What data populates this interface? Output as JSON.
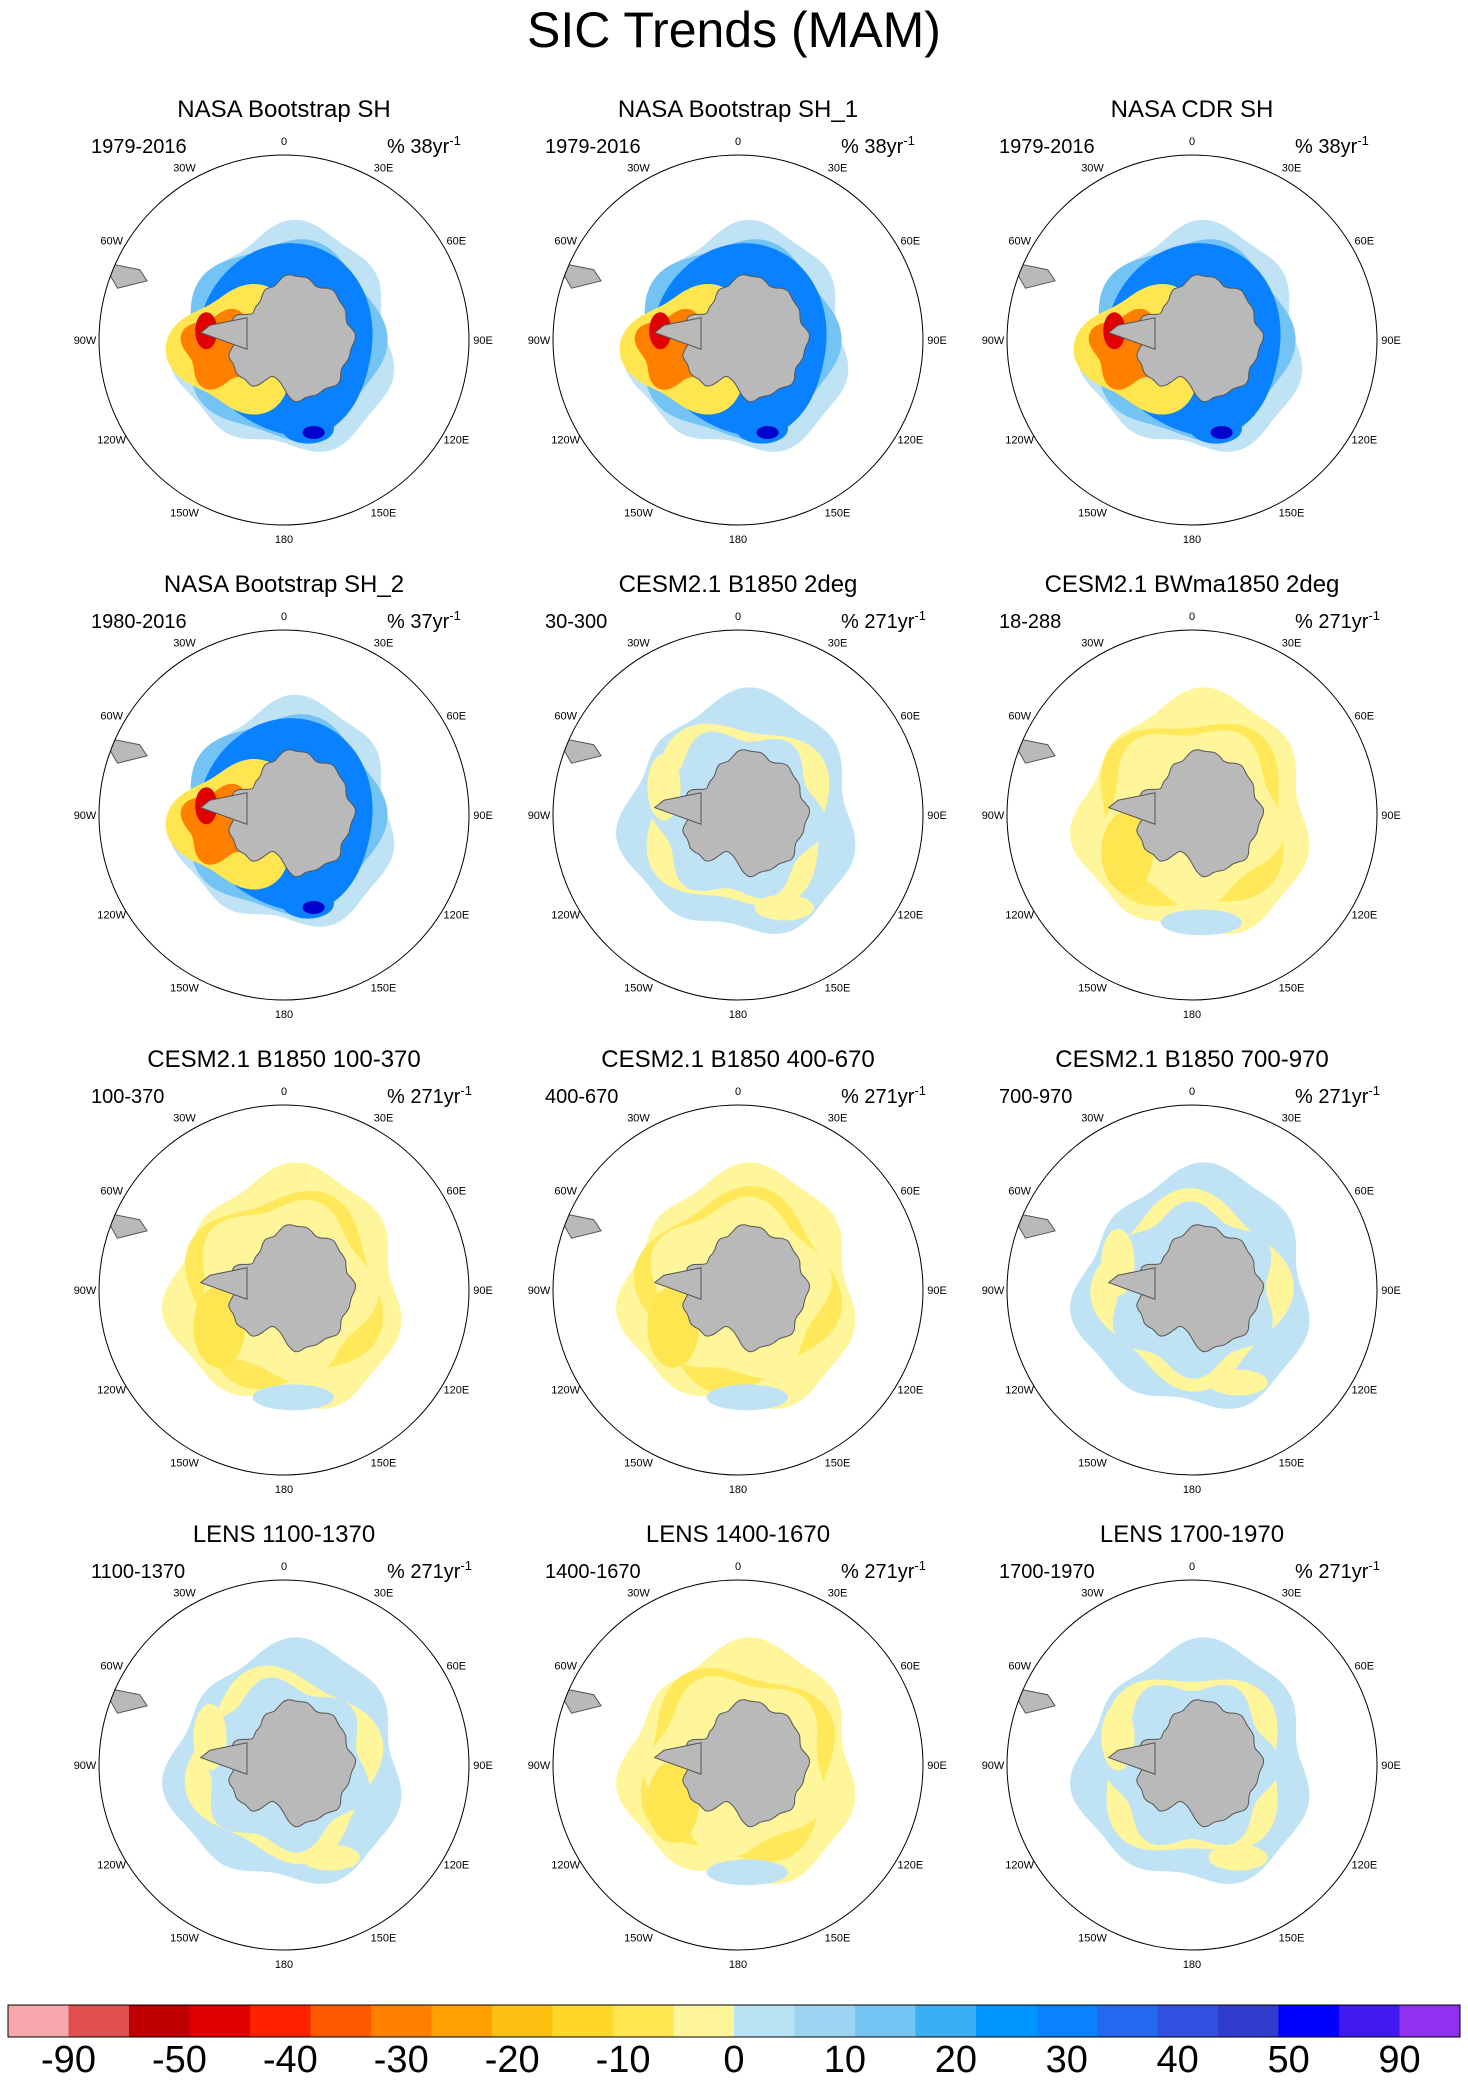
{
  "figure": {
    "title": "SIC Trends (MAM)"
  },
  "chart_data": {
    "type": "polar-stereographic contour maps",
    "projection": "South Polar Stereographic",
    "lon_tick_labels": [
      "0",
      "30E",
      "60E",
      "90E",
      "120E",
      "150E",
      "180",
      "150W",
      "120W",
      "90W",
      "60W",
      "30W"
    ],
    "panels": [
      {
        "title": "NASA Bootstrap SH",
        "period": "1979-2016",
        "units": "% 38yr",
        "units_sup": "-1",
        "style": "obs"
      },
      {
        "title": "NASA Bootstrap SH_1",
        "period": "1979-2016",
        "units": "% 38yr",
        "units_sup": "-1",
        "style": "obs"
      },
      {
        "title": "NASA CDR SH",
        "period": "1979-2016",
        "units": "% 38yr",
        "units_sup": "-1",
        "style": "obs"
      },
      {
        "title": "NASA Bootstrap SH_2",
        "period": "1980-2016",
        "units": "% 37yr",
        "units_sup": "-1",
        "style": "obs"
      },
      {
        "title": "CESM2.1 B1850 2deg",
        "period": "30-300",
        "units": "% 271yr",
        "units_sup": "-1",
        "style": "model-blue"
      },
      {
        "title": "CESM2.1 BWma1850 2deg",
        "period": "18-288",
        "units": "% 271yr",
        "units_sup": "-1",
        "style": "model-yellow"
      },
      {
        "title": "CESM2.1 B1850 100-370",
        "period": "100-370",
        "units": "% 271yr",
        "units_sup": "-1",
        "style": "model-yellow"
      },
      {
        "title": "CESM2.1 B1850 400-670",
        "period": "400-670",
        "units": "% 271yr",
        "units_sup": "-1",
        "style": "model-yellow"
      },
      {
        "title": "CESM2.1 B1850 700-970",
        "period": "700-970",
        "units": "% 271yr",
        "units_sup": "-1",
        "style": "model-mixed"
      },
      {
        "title": "LENS 1100-1370",
        "period": "1100-1370",
        "units": "% 271yr",
        "units_sup": "-1",
        "style": "model-blue"
      },
      {
        "title": "LENS 1400-1670",
        "period": "1400-1670",
        "units": "% 271yr",
        "units_sup": "-1",
        "style": "model-yellow"
      },
      {
        "title": "LENS 1700-1970",
        "period": "1700-1970",
        "units": "% 271yr",
        "units_sup": "-1",
        "style": "model-mixed"
      }
    ],
    "colorbar": {
      "labels": [
        "-90",
        "-50",
        "-40",
        "-30",
        "-20",
        "-10",
        "0",
        "10",
        "20",
        "30",
        "40",
        "50",
        "90"
      ],
      "colors": [
        "#f8a8ac",
        "#e05050",
        "#c00000",
        "#e00000",
        "#ff2000",
        "#ff5a00",
        "#ff8000",
        "#ffa000",
        "#ffbf10",
        "#ffd728",
        "#ffe650",
        "#fff59a",
        "#b9e2f5",
        "#9cd5f2",
        "#73c3f5",
        "#3aaef5",
        "#0096ff",
        "#0a82ff",
        "#2468f0",
        "#3050e0",
        "#303ccd",
        "#0000ff",
        "#4018f0",
        "#9030f0"
      ]
    },
    "palette": {
      "land": "#b9b9b9",
      "neg_light": "#fff59a",
      "neg_med": "#ffe650",
      "neg_strong": "#ff8000",
      "neg_max": "#e00000",
      "pos_light": "#bfe3f5",
      "pos_med": "#73c3f5",
      "pos_strong": "#0a82ff",
      "pos_max": "#0000cd"
    }
  }
}
